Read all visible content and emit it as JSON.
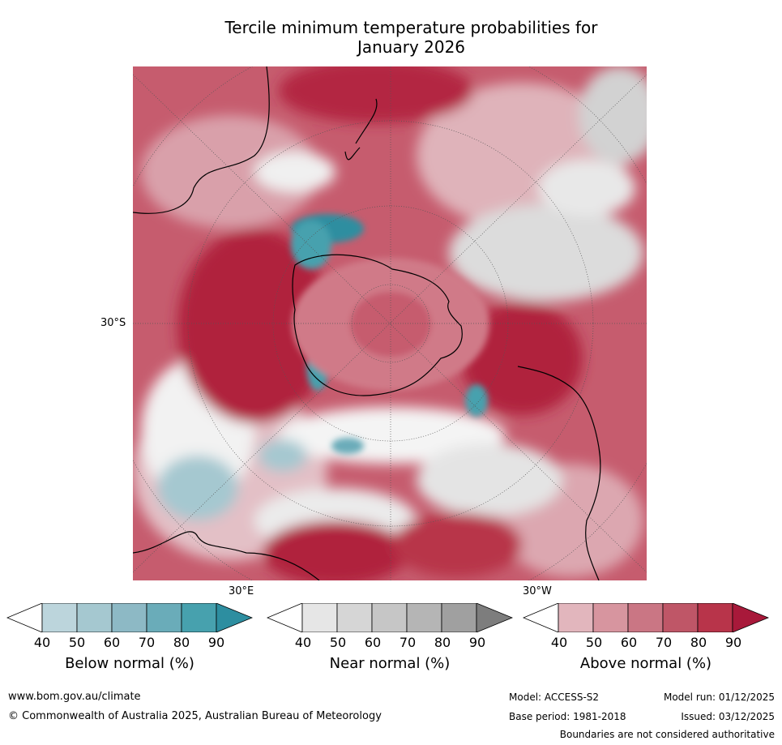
{
  "title_line1": "Tercile minimum temperature probabilities for",
  "title_line2": "January 2026",
  "map": {
    "lat_label": "30°S",
    "lon_label_east": "30°E",
    "lon_label_west": "30°W",
    "region": "Southern Hemisphere polar stereographic"
  },
  "legend": [
    {
      "label": "Below normal (%)",
      "ticks": [
        "40",
        "50",
        "60",
        "70",
        "80",
        "90"
      ],
      "colors": [
        "#ffffff",
        "#bcd5dc",
        "#a5c8d0",
        "#8db9c5",
        "#6aacb9",
        "#47a1ae",
        "#2d8ea0"
      ]
    },
    {
      "label": "Near normal (%)",
      "ticks": [
        "40",
        "50",
        "60",
        "70",
        "80",
        "90"
      ],
      "colors": [
        "#ffffff",
        "#e6e6e6",
        "#d6d6d6",
        "#c6c6c6",
        "#b5b5b5",
        "#a0a0a0",
        "#7d7d7d"
      ]
    },
    {
      "label": "Above normal (%)",
      "ticks": [
        "40",
        "50",
        "60",
        "70",
        "80",
        "90"
      ],
      "colors": [
        "#ffffff",
        "#e2b6bd",
        "#d7959f",
        "#ca7684",
        "#bf5667",
        "#b8344a",
        "#a8193a"
      ]
    }
  ],
  "footer": {
    "website": "www.bom.gov.au/climate",
    "copyright": "© Commonwealth of Australia 2025, Australian Bureau of Meteorology",
    "model": "Model: ACCESS-S2",
    "base_period": "Base period: 1981-2018",
    "model_run": "Model run: 01/12/2025",
    "issued": "Issued: 03/12/2025",
    "disclaimer": "Boundaries are not considered authoritative"
  }
}
